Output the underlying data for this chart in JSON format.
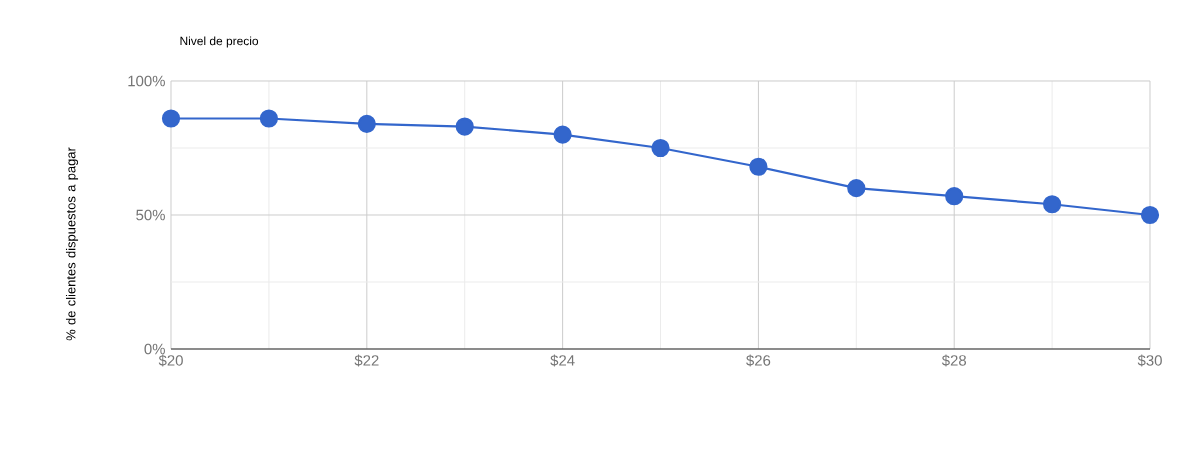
{
  "chart_data": {
    "type": "line",
    "title": "Nivel de precio",
    "ylabel": "% de clientes dispuestos a pagar",
    "x": [
      20,
      21,
      22,
      23,
      24,
      25,
      26,
      27,
      28,
      29,
      30
    ],
    "series": [
      {
        "color": "#3366cc",
        "values": [
          86,
          86,
          84,
          83,
          80,
          75,
          68,
          60,
          57,
          54,
          50
        ]
      }
    ],
    "xlim": [
      20,
      30
    ],
    "ylim": [
      0,
      100
    ],
    "xticks": [
      {
        "value": 20,
        "label": "$20"
      },
      {
        "value": 22,
        "label": "$22"
      },
      {
        "value": 24,
        "label": "$24"
      },
      {
        "value": 26,
        "label": "$26"
      },
      {
        "value": 28,
        "label": "$28"
      },
      {
        "value": 30,
        "label": "$30"
      }
    ],
    "yticks": [
      {
        "value": 0,
        "label": "0%"
      },
      {
        "value": 50,
        "label": "50%"
      },
      {
        "value": 100,
        "label": "100%"
      }
    ],
    "grid": true,
    "marker": "circle",
    "line_style": "solid"
  }
}
